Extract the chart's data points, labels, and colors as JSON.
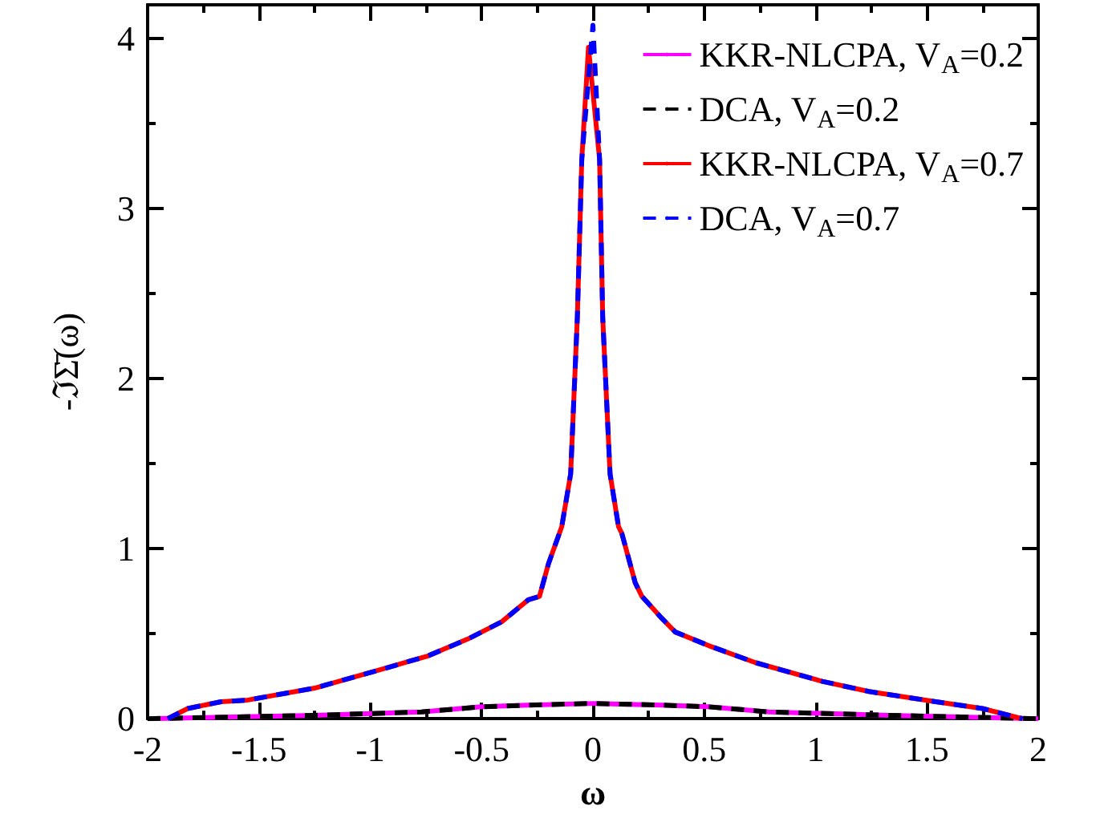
{
  "chart_data": {
    "type": "line",
    "xlabel": "ω",
    "ylabel": "-ℑΣ̄(ω)",
    "xlim": [
      -2,
      2
    ],
    "ylim": [
      0,
      4.2
    ],
    "xticks": [
      -2,
      {
        "value": -1.75,
        "label": null
      },
      -1.5,
      {
        "value": -1.25,
        "label": null
      },
      -1,
      {
        "value": -0.75,
        "label": null
      },
      -0.5,
      {
        "value": -0.25,
        "label": null
      },
      0,
      {
        "value": 0.25,
        "label": null
      },
      0.5,
      {
        "value": 0.75,
        "label": null
      },
      1,
      {
        "value": 1.25,
        "label": null
      },
      1.5,
      {
        "value": 1.75,
        "label": null
      },
      2
    ],
    "yticks": [
      0,
      {
        "value": 0.5,
        "label": null
      },
      1,
      {
        "value": 1.5,
        "label": null
      },
      2,
      {
        "value": 2.5,
        "label": null
      },
      3,
      {
        "value": 3.5,
        "label": null
      },
      4
    ],
    "grid": false,
    "legend": "top right",
    "marker": "none",
    "series": [
      {
        "name": "KKR-NLCPA, V$_{A}$=0.2",
        "color": "#ff00ff",
        "line_style": "solid",
        "x": [
          -2,
          -1.25,
          -0.77,
          -0.5,
          -0.29,
          0,
          0.31,
          0.52,
          0.79,
          1.33,
          2
        ],
        "values": [
          0,
          0.02,
          0.04,
          0.07,
          0.08,
          0.09,
          0.08,
          0.07,
          0.04,
          0.02,
          0
        ]
      },
      {
        "name": "DCA, V$_{A}$=0.2",
        "color": "#000000",
        "line_style": "dashed",
        "x": [
          -2,
          -1.25,
          -0.77,
          -0.5,
          -0.29,
          0,
          0.31,
          0.52,
          0.79,
          1.33,
          2
        ],
        "values": [
          0,
          0.02,
          0.04,
          0.07,
          0.08,
          0.09,
          0.08,
          0.07,
          0.04,
          0.02,
          0
        ]
      },
      {
        "name": "KKR-NLCPA, V$_{A}$=0.7",
        "color": "#ff0000",
        "line_style": "solid",
        "x": [
          -1.91,
          -1.82,
          -1.67,
          -1.55,
          -1.25,
          -0.95,
          -0.74,
          -0.56,
          -0.41,
          -0.29,
          -0.24,
          -0.2,
          -0.14,
          -0.1,
          -0.07,
          -0.05,
          -0.02,
          0.03,
          0.044,
          0.077,
          0.115,
          0.13,
          0.19,
          0.22,
          0.31,
          0.37,
          0.52,
          0.73,
          1.03,
          1.24,
          1.54,
          1.75,
          1.93
        ],
        "values": [
          0,
          0.06,
          0.1,
          0.11,
          0.18,
          0.29,
          0.37,
          0.47,
          0.57,
          0.7,
          0.72,
          0.91,
          1.13,
          1.44,
          2.36,
          3.29,
          3.95,
          3.29,
          2.36,
          1.44,
          1.13,
          1.09,
          0.8,
          0.72,
          0.59,
          0.51,
          0.43,
          0.33,
          0.22,
          0.16,
          0.1,
          0.06,
          0
        ]
      },
      {
        "name": "DCA, V$_{A}$=0.7",
        "color": "#0000ff",
        "line_style": "dashed",
        "x": [
          -1.91,
          -1.82,
          -1.67,
          -1.55,
          -1.25,
          -0.95,
          -0.74,
          -0.56,
          -0.41,
          -0.29,
          -0.24,
          -0.2,
          -0.14,
          -0.1,
          -0.07,
          -0.05,
          0,
          0.03,
          0.044,
          0.077,
          0.115,
          0.13,
          0.19,
          0.22,
          0.31,
          0.37,
          0.52,
          0.73,
          1.03,
          1.24,
          1.54,
          1.75,
          1.93
        ],
        "values": [
          0,
          0.06,
          0.1,
          0.11,
          0.18,
          0.29,
          0.37,
          0.47,
          0.57,
          0.7,
          0.72,
          0.91,
          1.13,
          1.44,
          2.36,
          3.29,
          4.08,
          3.29,
          2.36,
          1.44,
          1.13,
          1.09,
          0.8,
          0.72,
          0.59,
          0.51,
          0.43,
          0.33,
          0.22,
          0.16,
          0.1,
          0.06,
          0
        ]
      }
    ]
  }
}
